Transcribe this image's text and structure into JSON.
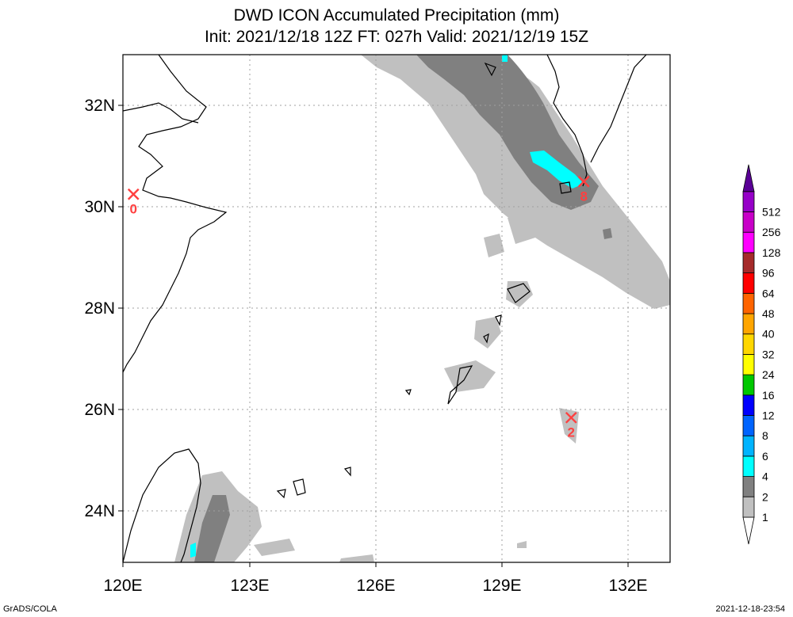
{
  "title": {
    "line1": "DWD ICON Accumulated Precipitation (mm)",
    "line2": "Init: 2021/12/18 12Z  FT: 027h  Valid: 2021/12/19 15Z"
  },
  "axes": {
    "lon_labels": [
      "120E",
      "123E",
      "126E",
      "129E",
      "132E"
    ],
    "lat_labels": [
      "32N",
      "30N",
      "28N",
      "26N",
      "24N"
    ]
  },
  "stations": [
    {
      "name": "x-marker",
      "value": "0",
      "lon": 120.25,
      "lat": 30.25
    },
    {
      "name": "x-marker",
      "value": "8",
      "lon": 130.95,
      "lat": 30.5
    },
    {
      "name": "x-marker",
      "value": "2",
      "lon": 130.65,
      "lat": 25.85
    }
  ],
  "colorbar": {
    "levels": [
      "1",
      "2",
      "4",
      "6",
      "8",
      "12",
      "16",
      "24",
      "32",
      "40",
      "48",
      "64",
      "96",
      "128",
      "256",
      "512"
    ],
    "colors": [
      "#c0c0c0",
      "#808080",
      "#00ffff",
      "#00b4ff",
      "#0064ff",
      "#0000ff",
      "#00c800",
      "#ffff00",
      "#ffd700",
      "#ffa500",
      "#ff6400",
      "#ff0000",
      "#a52a2a",
      "#ff00ff",
      "#c800c8",
      "#9600c8",
      "#5a0096"
    ]
  },
  "footer": {
    "left": "GrADS/COLA",
    "right": "2021-12-18-23:54"
  },
  "colors": {
    "light_precip": "#c0c0c0",
    "mid_precip": "#808080",
    "heavy_precip": "#00ffff",
    "marker": "#ff4040",
    "coast": "#000000",
    "grid": "#a0a0a0"
  }
}
